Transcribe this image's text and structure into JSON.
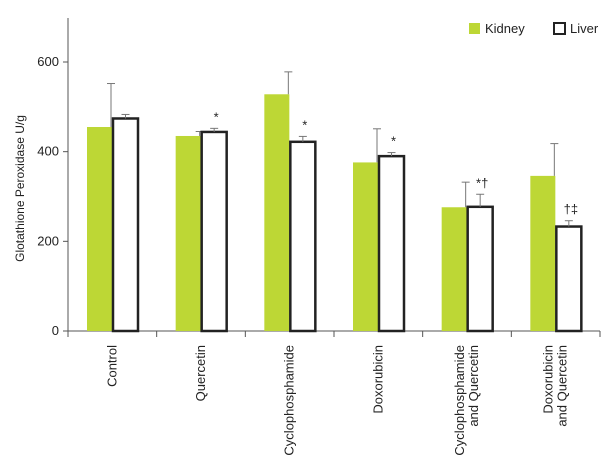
{
  "chart_data": {
    "type": "bar",
    "ylabel": "Glotathione Peroxidase U/g",
    "ylim": [
      0,
      700
    ],
    "yticks": [
      0,
      200,
      400,
      600
    ],
    "legend_position": "top-right",
    "categories": [
      [
        "Control"
      ],
      [
        "Quercetin"
      ],
      [
        "Cyclophosphamide"
      ],
      [
        "Doxorubicin"
      ],
      [
        "Cyclophosphamide",
        "and Quercetin"
      ],
      [
        "Doxorubicin",
        "and Quercetin"
      ]
    ],
    "series": [
      {
        "name": "Kidney",
        "color": "#bdd735",
        "values": [
          455,
          435,
          528,
          376,
          276,
          346
        ],
        "errors": [
          97,
          10,
          50,
          75,
          56,
          72
        ],
        "markers": [
          "",
          "",
          "",
          "",
          "",
          ""
        ]
      },
      {
        "name": "Liver",
        "color": "#ffffff",
        "values": [
          474,
          444,
          422,
          390,
          277,
          233
        ],
        "errors": [
          9,
          8,
          12,
          8,
          28,
          13
        ],
        "markers": [
          "",
          "*",
          "*",
          "*",
          "*†",
          "†‡"
        ]
      }
    ]
  }
}
